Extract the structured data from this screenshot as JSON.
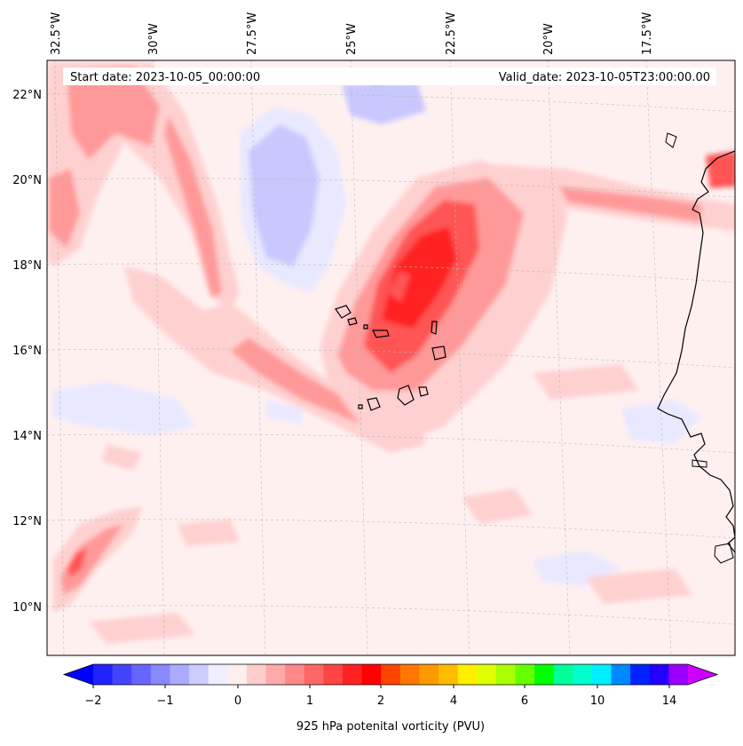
{
  "header": {
    "start_date": "Start date: 2023-10-05_00:00:00",
    "valid_date": "Valid_date: 2023-10-05T23:00:00.00"
  },
  "longitude_labels": [
    "32.5°W",
    "30°W",
    "27.5°W",
    "25°W",
    "22.5°W",
    "20°W",
    "17.5°W"
  ],
  "latitude_labels": [
    "22°N",
    "20°N",
    "18°N",
    "16°N",
    "14°N",
    "12°N",
    "10°N"
  ],
  "colorbar": {
    "label": "925 hPa potenital vorticity (PVU)",
    "tick_labels": [
      "−2",
      "−1",
      "0",
      "1",
      "2",
      "4",
      "6",
      "10",
      "14"
    ],
    "colors": [
      "#0000ff",
      "#2222ff",
      "#4444ff",
      "#6666ff",
      "#8888ff",
      "#aaaaff",
      "#ccccff",
      "#eeeeff",
      "#ffeeee",
      "#ffcccc",
      "#ffaaaa",
      "#ff8888",
      "#ff6666",
      "#ff4444",
      "#ff2222",
      "#ff0000",
      "#ff4400",
      "#ff7700",
      "#ff9900",
      "#ffbb00",
      "#ffee00",
      "#ddff00",
      "#aaff00",
      "#66ff00",
      "#00ff00",
      "#00ff99",
      "#00ffcc",
      "#00eeff",
      "#0088ff",
      "#0022ff",
      "#2200ff",
      "#9900ff",
      "#cc00ff"
    ]
  },
  "map_colors": {
    "background": "#fff0f0",
    "weak_positive": "#ffd0d0",
    "moderate_positive": "#ff9999",
    "strong_positive": "#ff5555",
    "max_positive": "#ff2222",
    "weak_negative": "#e8e8ff",
    "moderate_negative": "#c8c8ff",
    "strong_negative": "#7777ff",
    "coastline": "#000000"
  }
}
